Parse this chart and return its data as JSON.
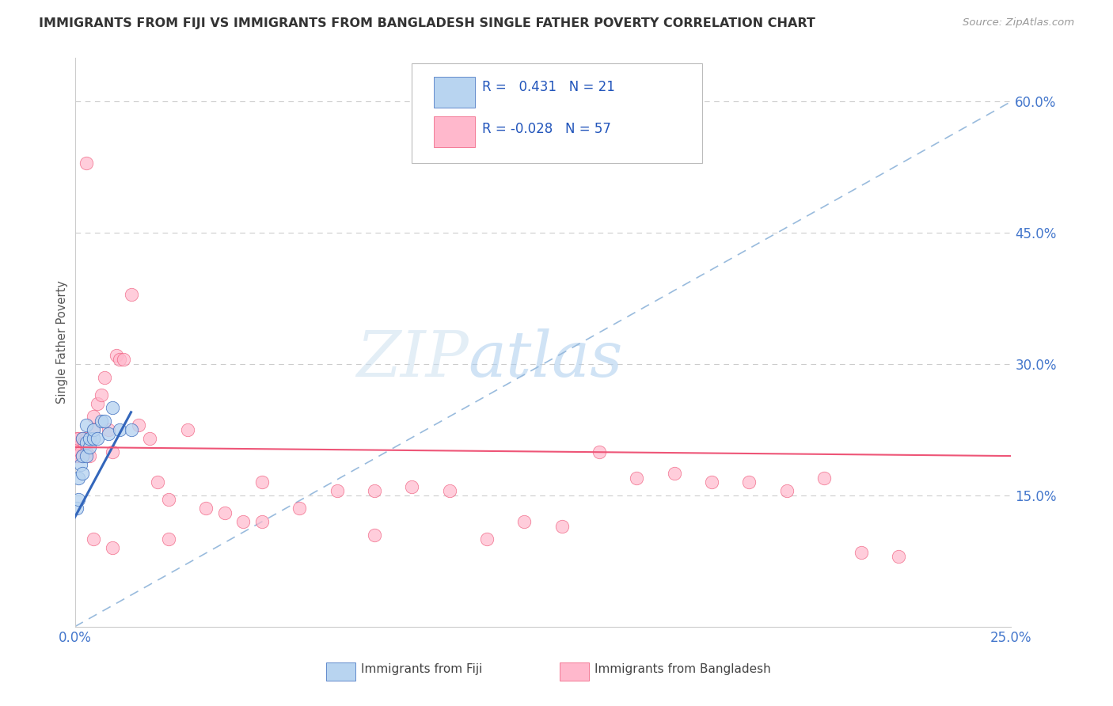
{
  "title": "IMMIGRANTS FROM FIJI VS IMMIGRANTS FROM BANGLADESH SINGLE FATHER POVERTY CORRELATION CHART",
  "source": "Source: ZipAtlas.com",
  "ylabel": "Single Father Poverty",
  "xlim": [
    0.0,
    0.25
  ],
  "ylim": [
    0.0,
    0.65
  ],
  "xtick_positions": [
    0.0,
    0.05,
    0.1,
    0.15,
    0.2,
    0.25
  ],
  "xtick_labels": [
    "0.0%",
    "",
    "",
    "",
    "",
    "25.0%"
  ],
  "ytick_vals_right": [
    0.15,
    0.3,
    0.45,
    0.6
  ],
  "ytick_labels_right": [
    "15.0%",
    "30.0%",
    "45.0%",
    "60.0%"
  ],
  "fiji_R": 0.431,
  "fiji_N": 21,
  "bangladesh_R": -0.028,
  "bangladesh_N": 57,
  "fiji_color": "#b8d4f0",
  "bangladesh_color": "#ffb8cc",
  "fiji_line_color": "#3366bb",
  "bangladesh_line_color": "#ee5577",
  "ref_line_color": "#99bbdd",
  "watermark_zip": "ZIP",
  "watermark_atlas": "atlas",
  "fiji_x": [
    0.0005,
    0.001,
    0.001,
    0.0015,
    0.002,
    0.002,
    0.002,
    0.003,
    0.003,
    0.003,
    0.004,
    0.004,
    0.005,
    0.005,
    0.006,
    0.007,
    0.008,
    0.009,
    0.01,
    0.012,
    0.015
  ],
  "fiji_y": [
    0.135,
    0.145,
    0.17,
    0.185,
    0.175,
    0.195,
    0.215,
    0.195,
    0.21,
    0.23,
    0.205,
    0.215,
    0.215,
    0.225,
    0.215,
    0.235,
    0.235,
    0.22,
    0.25,
    0.225,
    0.225
  ],
  "bangladesh_x": [
    0.0002,
    0.0004,
    0.0006,
    0.0008,
    0.001,
    0.001,
    0.0015,
    0.002,
    0.002,
    0.0025,
    0.003,
    0.003,
    0.004,
    0.004,
    0.005,
    0.005,
    0.006,
    0.007,
    0.008,
    0.009,
    0.01,
    0.011,
    0.012,
    0.013,
    0.015,
    0.017,
    0.02,
    0.022,
    0.025,
    0.03,
    0.035,
    0.04,
    0.045,
    0.05,
    0.06,
    0.07,
    0.08,
    0.09,
    0.1,
    0.11,
    0.12,
    0.13,
    0.14,
    0.15,
    0.16,
    0.17,
    0.18,
    0.19,
    0.2,
    0.21,
    0.22,
    0.003,
    0.005,
    0.01,
    0.025,
    0.05,
    0.08
  ],
  "bangladesh_y": [
    0.2,
    0.195,
    0.215,
    0.205,
    0.195,
    0.215,
    0.2,
    0.215,
    0.195,
    0.21,
    0.215,
    0.2,
    0.215,
    0.195,
    0.24,
    0.225,
    0.255,
    0.265,
    0.285,
    0.225,
    0.2,
    0.31,
    0.305,
    0.305,
    0.38,
    0.23,
    0.215,
    0.165,
    0.145,
    0.225,
    0.135,
    0.13,
    0.12,
    0.165,
    0.135,
    0.155,
    0.155,
    0.16,
    0.155,
    0.1,
    0.12,
    0.115,
    0.2,
    0.17,
    0.175,
    0.165,
    0.165,
    0.155,
    0.17,
    0.085,
    0.08,
    0.53,
    0.1,
    0.09,
    0.1,
    0.12,
    0.105
  ]
}
